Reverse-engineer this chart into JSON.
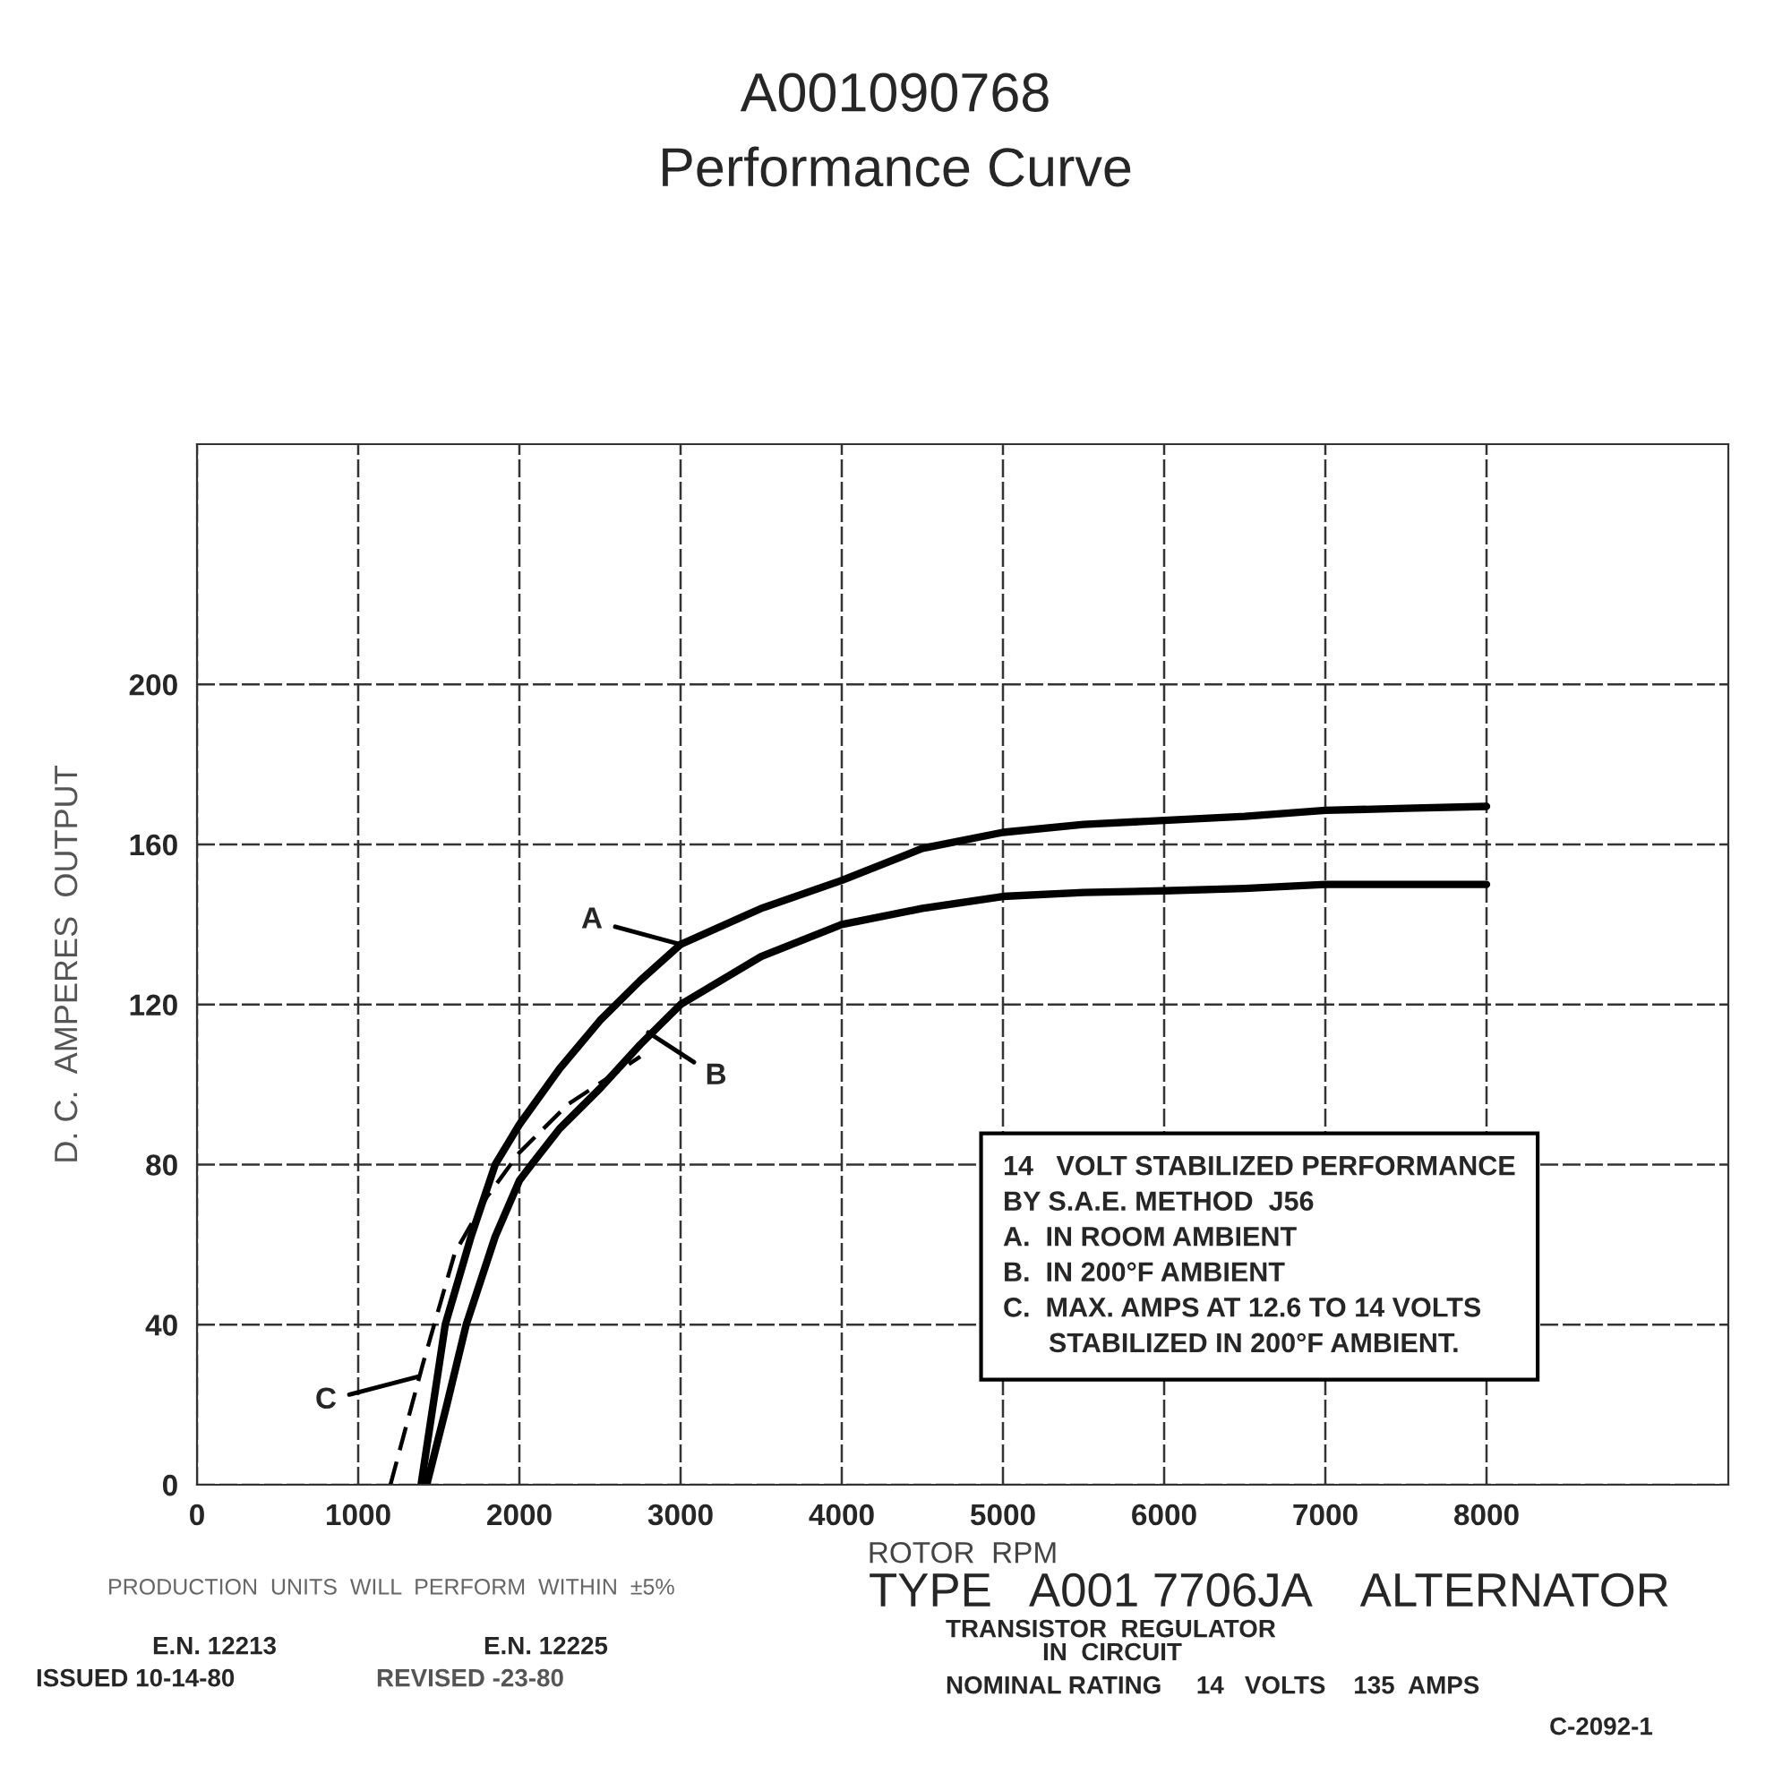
{
  "chart_data": {
    "type": "line",
    "title": "A001090768\nPerformance Curve",
    "xlabel": "ROTOR  RPM",
    "ylabel": "D. C.  AMPERES  OUTPUT",
    "xlim": [
      0,
      9500
    ],
    "ylim": [
      0,
      260
    ],
    "xticks": [
      0,
      1000,
      2000,
      3000,
      4000,
      5000,
      6000,
      7000,
      8000
    ],
    "yticks": [
      0,
      40,
      80,
      120,
      160,
      200
    ],
    "grid": true,
    "legend": false,
    "marker": "none",
    "series": [
      {
        "color": "#000000",
        "line_style": "solid",
        "x": [
          1390,
          1540,
          1700,
          1850,
          2000,
          2250,
          2500,
          2750,
          3000,
          3500,
          4000,
          4500,
          5000,
          5500,
          6000,
          6500,
          7000,
          7500,
          8000
        ],
        "values": [
          0,
          40,
          62,
          80,
          90,
          104,
          116,
          126,
          135,
          144,
          151,
          159,
          163,
          165,
          166,
          167,
          168.5,
          169,
          169.5
        ]
      },
      {
        "color": "#000000",
        "line_style": "solid",
        "x": [
          1425,
          1550,
          1670,
          1850,
          2000,
          2075,
          2250,
          2500,
          2750,
          3000,
          3500,
          4000,
          4500,
          5000,
          5500,
          6000,
          6500,
          7000,
          7500,
          8000
        ],
        "values": [
          0,
          20,
          40,
          62,
          76,
          80,
          89,
          99,
          110,
          120,
          132,
          140,
          144,
          147,
          148,
          148.4,
          149,
          150,
          150,
          150
        ]
      },
      {
        "color": "#000000",
        "line_style": "dashed",
        "x": [
          1200,
          1400,
          1600,
          1800,
          2000,
          2300,
          2600,
          2750
        ],
        "values": [
          0,
          30,
          58,
          72,
          83,
          95,
          103,
          107
        ]
      }
    ],
    "annotations": [
      {
        "text": "A",
        "x": 3000,
        "y": 135
      },
      {
        "text": "B",
        "x": 2800,
        "y": 113
      },
      {
        "text": "C",
        "x": 1370,
        "y": 27
      },
      "14   VOLT STABILIZED PERFORMANCE\nBY S.A.E. METHOD  J56\nA.  IN ROOM AMBIENT\nB.  IN 200°F AMBIENT\nC.  MAX. AMPS AT 12.6 TO 14 VOLTS\n      STABILIZED IN 200°F AMBIENT.",
      "PRODUCTION  UNITS  WILL  PERFORM  WITHIN  ±5%",
      "TYPE   A001 7706JA    ALTERNATOR",
      "TRANSISTOR  REGULATOR\n              IN  CIRCUIT",
      "NOMINAL RATING     14   VOLTS    135  AMPS",
      "E.N. 12213",
      "ISSUED 10-14-80",
      "E.N. 12225",
      "REVISED -23-80",
      "C-2092-1"
    ]
  }
}
